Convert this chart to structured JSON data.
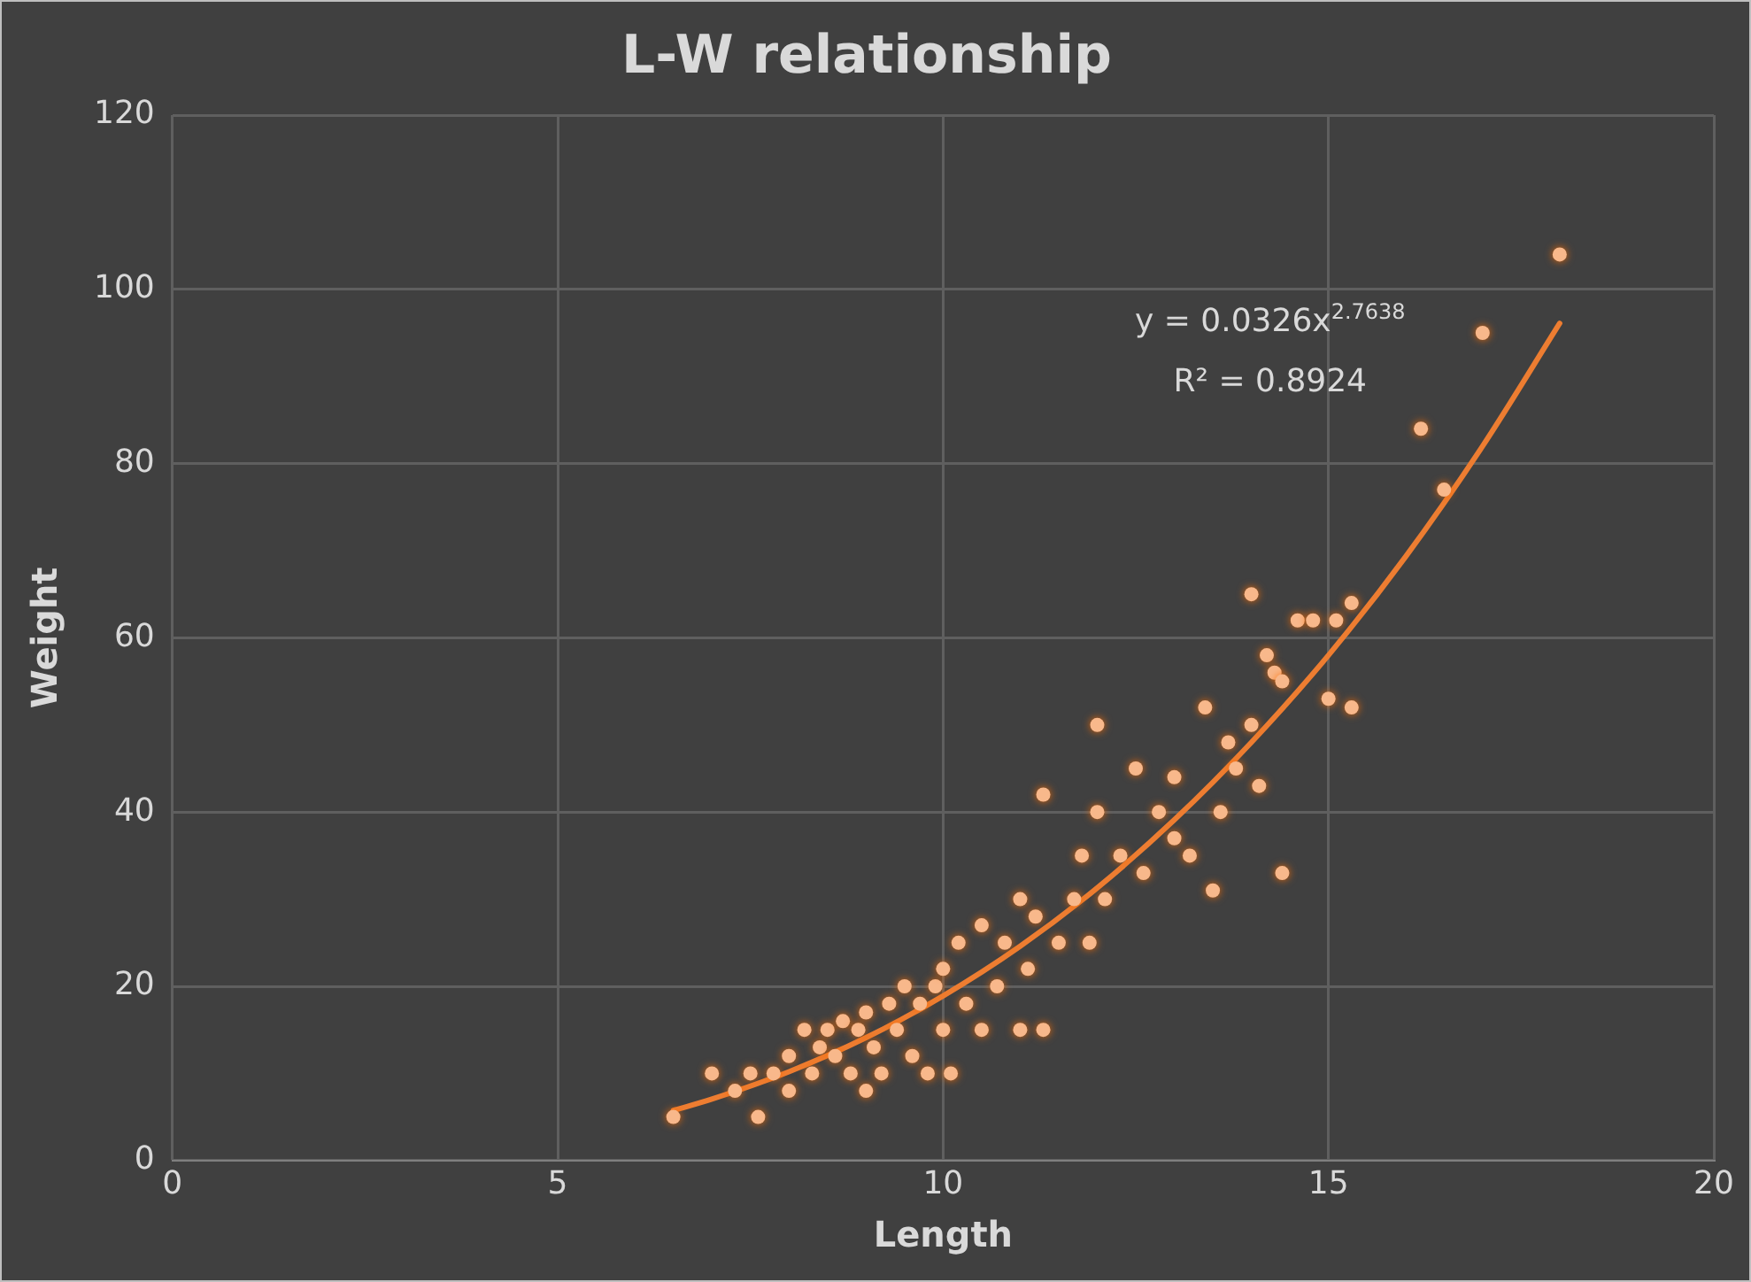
{
  "chart_data": {
    "type": "scatter",
    "title": "L-W relationship",
    "xlabel": "Length",
    "ylabel": "Weight",
    "xlim": [
      0,
      20
    ],
    "xticks": [
      0,
      5,
      10,
      15,
      20
    ],
    "ylim": [
      0,
      120
    ],
    "yticks": [
      0,
      20,
      40,
      60,
      80,
      100,
      120
    ],
    "grid": true,
    "legend": false,
    "marker": "circle",
    "annotations": [
      "y = 0.0326x$^{2.7638}$",
      "R² = 0.8924"
    ],
    "series": [
      {
        "color": "#f8b88b",
        "x": [
          6.5,
          7,
          7.3,
          7.5,
          7.6,
          7.8,
          8,
          8,
          8.2,
          8.3,
          8.4,
          8.5,
          8.6,
          8.7,
          8.8,
          8.9,
          9,
          9,
          9.1,
          9.2,
          9.3,
          9.4,
          9.5,
          9.6,
          9.7,
          9.8,
          9.9,
          10,
          10,
          10.1,
          10.2,
          10.3,
          10.5,
          10.5,
          10.7,
          10.8,
          11,
          11,
          11.1,
          11.2,
          11.3,
          11.3,
          11.5,
          11.7,
          11.8,
          11.9,
          12,
          12,
          12.1,
          12.3,
          12.5,
          12.6,
          12.8,
          13,
          13,
          13.2,
          13.4,
          13.5,
          13.6,
          13.7,
          13.8,
          14,
          14,
          14.1,
          14.2,
          14.3,
          14.4,
          14.4,
          14.6,
          14.8,
          15,
          15.1,
          15.3,
          15.3,
          16.2,
          16.5,
          17,
          18
        ],
        "values": [
          5,
          10,
          8,
          10,
          5,
          10,
          8,
          12,
          15,
          10,
          13,
          15,
          12,
          16,
          10,
          15,
          8,
          17,
          13,
          10,
          18,
          15,
          20,
          12,
          18,
          10,
          20,
          15,
          22,
          10,
          25,
          18,
          15,
          27,
          20,
          25,
          30,
          15,
          22,
          28,
          15,
          42,
          25,
          30,
          35,
          25,
          40,
          50,
          30,
          35,
          45,
          33,
          40,
          37,
          44,
          35,
          52,
          31,
          40,
          48,
          45,
          50,
          65,
          43,
          58,
          56,
          33,
          55,
          62,
          62,
          53,
          62,
          52,
          64,
          84,
          77,
          95,
          104
        ]
      },
      {
        "type": "line",
        "color": "#ed7d31",
        "marker": "none",
        "x": [
          6.5,
          7,
          8,
          9,
          10,
          11,
          12,
          13,
          14,
          15,
          16,
          17,
          18
        ],
        "values": [
          5.75,
          7.06,
          10.2,
          14.1,
          18.9,
          24.6,
          31.3,
          39.1,
          48.0,
          58.0,
          69.3,
          82.0,
          96.1
        ]
      }
    ]
  }
}
